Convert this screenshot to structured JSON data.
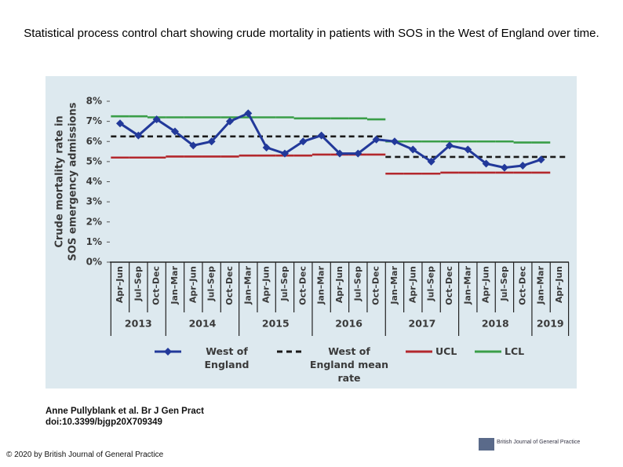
{
  "title": "Statistical process control chart showing crude mortality in patients with SOS in the West of England over time.",
  "chart_data": {
    "type": "line",
    "ylabel": [
      "Crude mortality rate in",
      "SOS emergency admissions"
    ],
    "categories": [
      "Apr–Jun",
      "Jul–Sep",
      "Oct–Dec",
      "Jan–Mar",
      "Apr–Jun",
      "Jul–Sep",
      "Oct–Dec",
      "Jan–Mar",
      "Apr–Jun",
      "Jul–Sep",
      "Oct–Dec",
      "Jan–Mar",
      "Apr–Jun",
      "Jul–Sep",
      "Oct–Dec",
      "Jan–Mar",
      "Apr–Jun",
      "Jul–Sep",
      "Oct–Dec",
      "Jan–Mar",
      "Apr–Jun",
      "Jul–Sep",
      "Oct–Dec",
      "Jan–Mar",
      "Apr–Jun"
    ],
    "years": [
      "2013",
      "2014",
      "2015",
      "2016",
      "2017",
      "2018",
      "2019"
    ],
    "ylim": [
      0,
      8
    ],
    "yticks": [
      {
        "value": 0,
        "label": "0%"
      },
      {
        "value": 1,
        "label": "1%"
      },
      {
        "value": 2,
        "label": "2%"
      },
      {
        "value": 3,
        "label": "3%"
      },
      {
        "value": 4,
        "label": "4%"
      },
      {
        "value": 5,
        "label": "5%"
      },
      {
        "value": 6,
        "label": "6%"
      },
      {
        "value": 7,
        "label": "7%"
      },
      {
        "value": 8,
        "label": "8%"
      }
    ],
    "series": [
      {
        "name": "West of England",
        "color": "#22399a",
        "marker": true,
        "dash": false,
        "values": [
          6.9,
          6.3,
          7.1,
          6.5,
          5.8,
          6.0,
          7.0,
          7.4,
          5.7,
          5.4,
          6.0,
          6.3,
          5.4,
          5.4,
          6.1,
          6.0,
          5.6,
          5.0,
          5.8,
          5.6,
          4.9,
          4.7,
          4.8,
          5.1,
          null
        ]
      },
      {
        "name": "West of England mean rate",
        "color": "#1a1a1a",
        "marker": false,
        "dash": true,
        "values": [
          6.25,
          6.25,
          6.25,
          6.25,
          6.25,
          6.25,
          6.25,
          6.25,
          6.25,
          6.25,
          6.25,
          6.25,
          6.25,
          6.25,
          6.25,
          5.23,
          5.23,
          5.23,
          5.23,
          5.23,
          5.23,
          5.23,
          5.23,
          5.23,
          5.23
        ]
      },
      {
        "name": "UCL",
        "color": "#b3282d",
        "marker": false,
        "dash": false,
        "values": [
          5.2,
          5.2,
          5.2,
          5.25,
          5.25,
          5.25,
          5.25,
          5.3,
          5.3,
          5.3,
          5.3,
          5.35,
          5.35,
          5.35,
          5.35,
          4.4,
          4.4,
          4.4,
          4.45,
          4.45,
          4.45,
          4.45,
          4.45,
          4.45,
          null
        ]
      },
      {
        "name": "LCL",
        "color": "#3a9e48",
        "marker": false,
        "dash": false,
        "values": [
          7.25,
          7.25,
          7.2,
          7.2,
          7.2,
          7.2,
          7.2,
          7.2,
          7.2,
          7.2,
          7.15,
          7.15,
          7.15,
          7.15,
          7.1,
          6.0,
          6.0,
          6.0,
          6.0,
          6.0,
          6.0,
          6.0,
          5.95,
          5.95,
          null
        ]
      }
    ]
  },
  "citation": [
    "Anne Pullyblank et al. Br J Gen Pract",
    "doi:10.3399/bjgp20X709349"
  ],
  "copyright": "© 2020 by British Journal of General Practice",
  "logo": "British Journal of General Practice"
}
